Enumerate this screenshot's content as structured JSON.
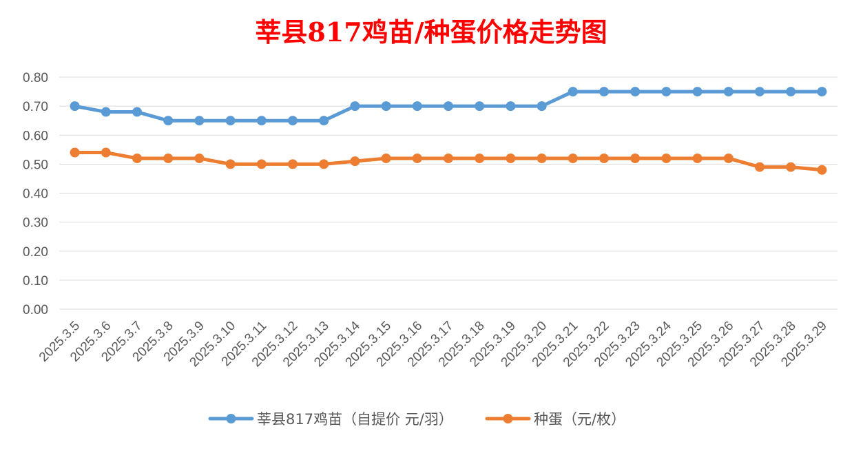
{
  "chart_data": {
    "type": "line",
    "title": "莘县817鸡苗/种蛋价格走势图",
    "xlabel": "",
    "ylabel": "",
    "ylim": [
      0,
      0.8
    ],
    "yticks": [
      "0.00",
      "0.10",
      "0.20",
      "0.30",
      "0.40",
      "0.50",
      "0.60",
      "0.70",
      "0.80"
    ],
    "ytick_values": [
      0,
      0.1,
      0.2,
      0.3,
      0.4,
      0.5,
      0.6,
      0.7,
      0.8
    ],
    "grid": true,
    "legend_position": "bottom",
    "categories": [
      "2025.3.5",
      "2025.3.6",
      "2025.3.7",
      "2025.3.8",
      "2025.3.9",
      "2025.3.10",
      "2025.3.11",
      "2025.3.12",
      "2025.3.13",
      "2025.3.14",
      "2025.3.15",
      "2025.3.16",
      "2025.3.17",
      "2025.3.18",
      "2025.3.19",
      "2025.3.20",
      "2025.3.21",
      "2025.3.22",
      "2025.3.23",
      "2025.3.24",
      "2025.3.25",
      "2025.3.26",
      "2025.3.27",
      "2025.3.28",
      "2025.3.29"
    ],
    "series": [
      {
        "name": "莘县817鸡苗（自提价 元/羽）",
        "color": "#5B9BD5",
        "values": [
          0.7,
          0.68,
          0.68,
          0.65,
          0.65,
          0.65,
          0.65,
          0.65,
          0.65,
          0.7,
          0.7,
          0.7,
          0.7,
          0.7,
          0.7,
          0.7,
          0.75,
          0.75,
          0.75,
          0.75,
          0.75,
          0.75,
          0.75,
          0.75,
          0.75
        ]
      },
      {
        "name": "种蛋（元/枚）",
        "color": "#ED7D31",
        "values": [
          0.54,
          0.54,
          0.52,
          0.52,
          0.52,
          0.5,
          0.5,
          0.5,
          0.5,
          0.51,
          0.52,
          0.52,
          0.52,
          0.52,
          0.52,
          0.52,
          0.52,
          0.52,
          0.52,
          0.52,
          0.52,
          0.52,
          0.49,
          0.49,
          0.48
        ]
      }
    ]
  },
  "colors": {
    "title": "#FF0000",
    "grid": "#D9D9D9",
    "axis_text": "#595959"
  }
}
